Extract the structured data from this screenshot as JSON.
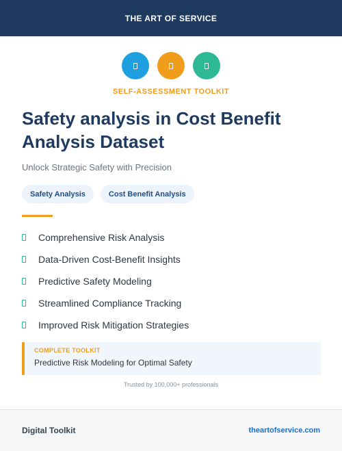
{
  "header": {
    "brand": "THE ART OF SERVICE"
  },
  "colors": {
    "navy": "#1f3a5f",
    "blue": "#1e9fe0",
    "orange": "#f19d1c",
    "green": "#2eb896"
  },
  "icons": [
    {
      "name": "document-icon",
      "color": "#1e9fe0"
    },
    {
      "name": "document-icon",
      "color": "#f19d1c"
    },
    {
      "name": "document-icon",
      "color": "#2eb896"
    }
  ],
  "eyebrow": "SELF-ASSESSMENT TOOLKIT",
  "title": "Safety analysis in Cost Benefit Analysis Dataset",
  "subtitle": "Unlock Strategic Safety with Precision",
  "tags": [
    "Safety Analysis",
    "Cost Benefit Analysis"
  ],
  "features": [
    "Comprehensive Risk Analysis",
    "Data-Driven Cost-Benefit Insights",
    "Predictive Safety Modeling",
    "Streamlined Compliance Tracking",
    "Improved Risk Mitigation Strategies"
  ],
  "callout": {
    "label": "COMPLETE TOOLKIT",
    "text": "Predictive Risk Modeling for Optimal Safety"
  },
  "trust": "Trusted by 100,000+ professionals",
  "footer": {
    "left": "Digital Toolkit",
    "right": "theartofservice.com"
  }
}
